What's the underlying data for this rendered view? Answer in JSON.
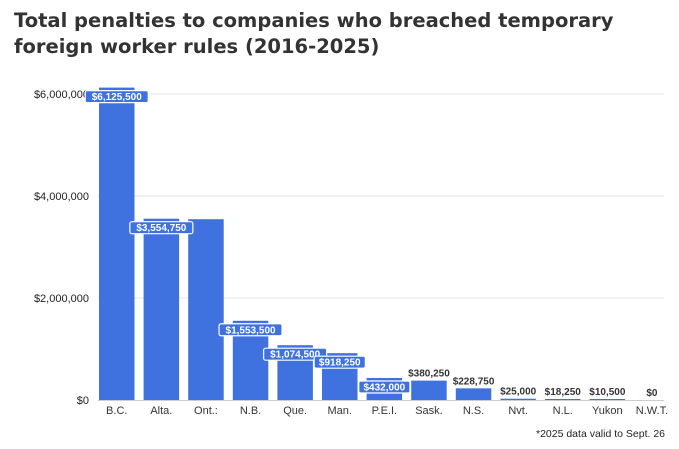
{
  "title": "Total penalties to companies who breached temporary foreign worker rules (2016-2025)",
  "footnote": "*2025 data valid to Sept. 26",
  "colors": {
    "bar": "#3f72de",
    "label_bg": "#3f72de",
    "label_border": "#ffffff",
    "grid": "#e6e6e6",
    "axis": "#cccccc"
  },
  "chart_data": {
    "type": "bar",
    "title": "Total penalties to companies who breached temporary foreign worker rules (2016-2025)",
    "xlabel": "",
    "ylabel": "",
    "categories": [
      "B.C.",
      "Alta.",
      "Ont.:",
      "N.B.",
      "Que.",
      "Man.",
      "P.E.I.",
      "Sask.",
      "N.S.",
      "Nvt.",
      "N.L.",
      "Yukon",
      "N.W.T."
    ],
    "values": [
      6125500,
      3554750,
      3545000,
      1553500,
      1074500,
      918250,
      432000,
      380250,
      228750,
      25000,
      18250,
      10500,
      0
    ],
    "data_labels": [
      "$6,125,500",
      "$3,554,750",
      "",
      "$1,553,500",
      "$1,074,500",
      "$918,250",
      "$432,000",
      "$380,250",
      "$228,750",
      "$25,000",
      "$18,250",
      "$10,500",
      "$0"
    ],
    "ylim": [
      0,
      6000000
    ],
    "yticks": [
      0,
      2000000,
      4000000,
      6000000
    ],
    "ytick_labels": [
      "$0",
      "$2,000,000",
      "$4,000,000",
      "$6,000,000"
    ],
    "grid": true,
    "legend": "none"
  }
}
